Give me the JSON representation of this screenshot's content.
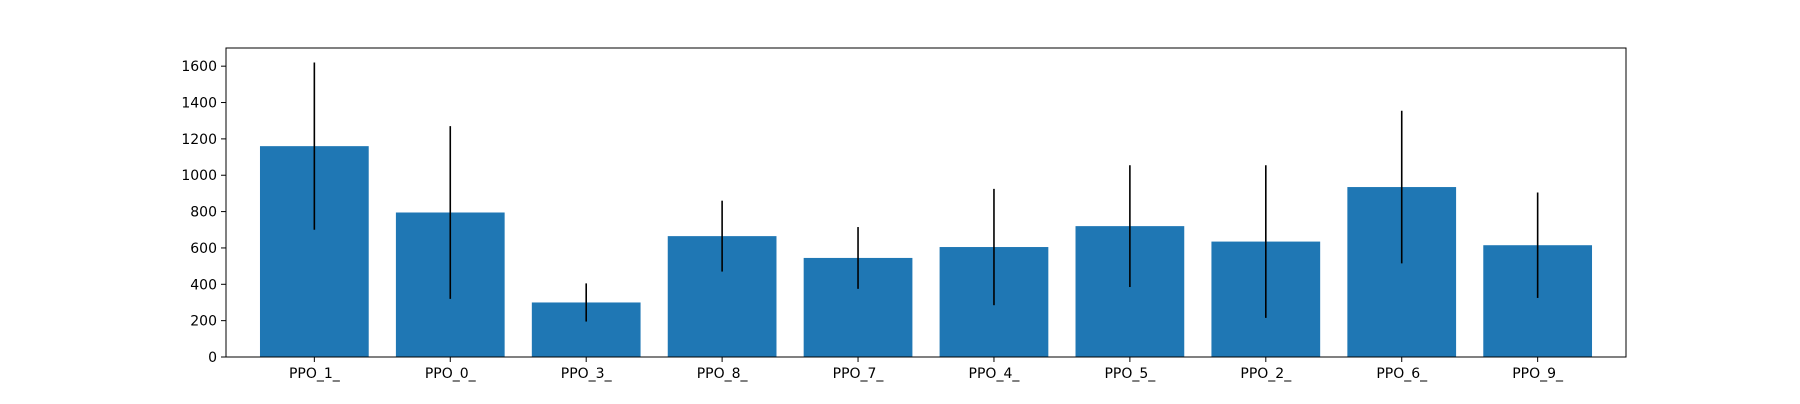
{
  "chart_data": {
    "type": "bar",
    "title": "",
    "xlabel": "",
    "ylabel": "",
    "categories": [
      "PPO_1_",
      "PPO_0_",
      "PPO_3_",
      "PPO_8_",
      "PPO_7_",
      "PPO_4_",
      "PPO_5_",
      "PPO_2_",
      "PPO_6_",
      "PPO_9_"
    ],
    "values": [
      1160,
      795,
      300,
      665,
      545,
      605,
      720,
      635,
      935,
      615
    ],
    "errors": [
      460,
      475,
      105,
      195,
      170,
      320,
      335,
      420,
      420,
      290
    ],
    "ylim": [
      0,
      1700
    ],
    "yticks": [
      0,
      200,
      400,
      600,
      800,
      1000,
      1200,
      1400,
      1600
    ],
    "ytick_labels": [
      "0",
      "200",
      "400",
      "600",
      "800",
      "1000",
      "1200",
      "1400",
      "1600"
    ],
    "grid": false,
    "legend": "none",
    "colors": {
      "bar": "#1f77b4",
      "error_bar": "#000000",
      "axes": "#000000"
    }
  }
}
